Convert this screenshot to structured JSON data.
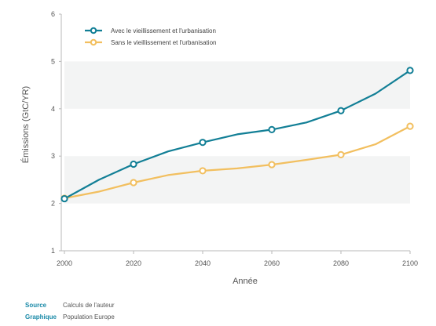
{
  "chart_data": {
    "type": "line",
    "xlabel": "Année",
    "ylabel": "Émissions (GtC/YR)",
    "xlim": [
      2000,
      2100
    ],
    "ylim": [
      1,
      6
    ],
    "x_ticks": [
      "2000",
      "2020",
      "2040",
      "2060",
      "2080",
      "2100"
    ],
    "y_ticks": [
      "1",
      "2",
      "3",
      "4",
      "5",
      "6"
    ],
    "grid": "alternating horizontal bands",
    "legend_position": "top-left",
    "x": [
      2000,
      2010,
      2020,
      2030,
      2040,
      2050,
      2060,
      2070,
      2080,
      2090,
      2100
    ],
    "marker_x": [
      2000,
      2020,
      2040,
      2060,
      2080,
      2100
    ],
    "series": [
      {
        "name": "Avec le vieillissement et l'urbanisation",
        "color": "#127f96",
        "values": [
          2.1,
          2.5,
          2.83,
          3.1,
          3.29,
          3.46,
          3.56,
          3.71,
          3.96,
          4.32,
          4.81
        ]
      },
      {
        "name": "Sans le vieillissement et l'urbanisation",
        "color": "#f2bf5f",
        "values": [
          2.11,
          2.25,
          2.44,
          2.6,
          2.69,
          2.74,
          2.82,
          2.92,
          3.03,
          3.25,
          3.63
        ]
      }
    ]
  },
  "footer": {
    "source_label": "Source",
    "source_value": "Calculs de l'auteur",
    "graphic_label": "Graphique",
    "graphic_value": "Population Europe"
  }
}
